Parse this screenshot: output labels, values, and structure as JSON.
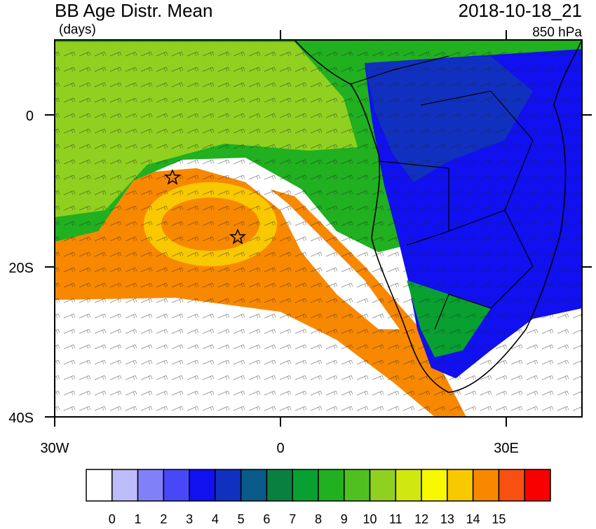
{
  "header": {
    "title": "BB Age Distr. Mean",
    "units": "(days)",
    "valid_time": "2018-10-18_21",
    "level": "850 hPa"
  },
  "axes": {
    "y_labels": [
      "0",
      "20S",
      "40S"
    ],
    "x_labels": [
      "30W",
      "0",
      "30E"
    ]
  },
  "colorbar": {
    "colors": [
      "#ffffff",
      "#bcbcf8",
      "#8080f8",
      "#4848f8",
      "#1010f0",
      "#1030c0",
      "#0a5a8a",
      "#0a8040",
      "#08a030",
      "#20b020",
      "#50c020",
      "#90d020",
      "#d0e810",
      "#f8f800",
      "#f8c800",
      "#f88800",
      "#f85010",
      "#f80000"
    ],
    "labels": [
      0,
      1,
      2,
      3,
      4,
      5,
      6,
      7,
      8,
      9,
      10,
      11,
      12,
      13,
      14,
      15
    ]
  }
}
